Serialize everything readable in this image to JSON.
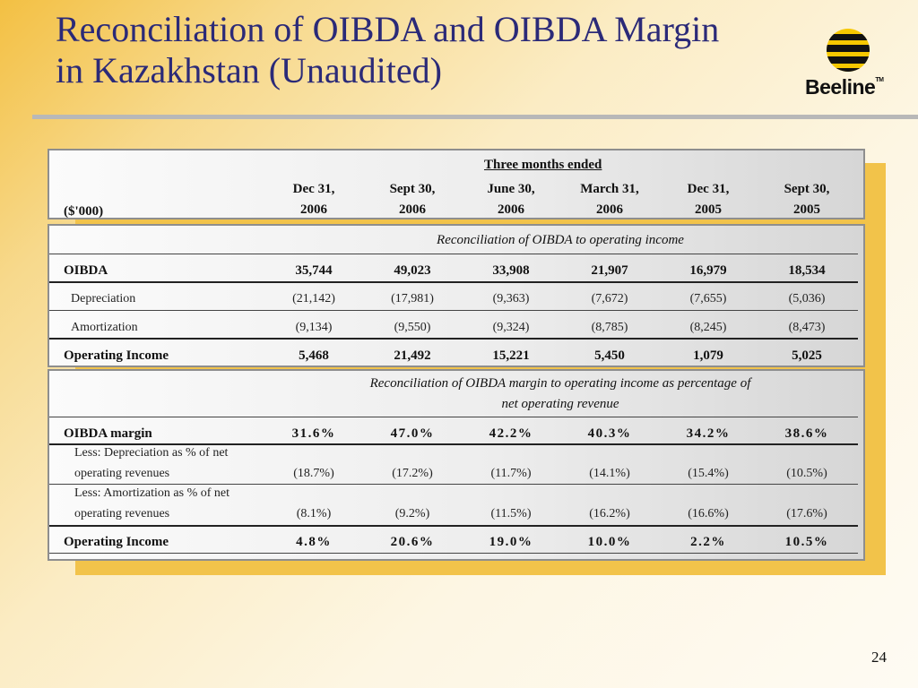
{
  "title": {
    "line1": "Reconciliation of OIBDA and OIBDA Margin",
    "line2": "in Kazakhstan (Unaudited)"
  },
  "logo": {
    "text": "Beeline",
    "tm": "TM",
    "icon": "beeline-striped-ball-icon",
    "stripe_color": "#f6c800",
    "dark_color": "#111111"
  },
  "page_number": "24",
  "table": {
    "group_header": "Three months ended",
    "unit_label": "($'000)",
    "columns": [
      {
        "line1": "Dec 31,",
        "line2": "2006"
      },
      {
        "line1": "Sept 30,",
        "line2": "2006"
      },
      {
        "line1": "June 30,",
        "line2": "2006"
      },
      {
        "line1": "March 31,",
        "line2": "2006"
      },
      {
        "line1": "Dec 31,",
        "line2": "2005"
      },
      {
        "line1": "Sept 30,",
        "line2": "2005"
      }
    ],
    "section1": {
      "caption": "Reconciliation of OIBDA to operating income",
      "rows": [
        {
          "label": "OIBDA",
          "values": [
            "35,744",
            "49,023",
            "33,908",
            "21,907",
            "16,979",
            "18,534"
          ]
        },
        {
          "label": "Depreciation",
          "values": [
            "(21,142)",
            "(17,981)",
            "(9,363)",
            "(7,672)",
            "(7,655)",
            "(5,036)"
          ]
        },
        {
          "label": "Amortization",
          "values": [
            "(9,134)",
            "(9,550)",
            "(9,324)",
            "(8,785)",
            "(8,245)",
            "(8,473)"
          ]
        },
        {
          "label": "Operating Income",
          "values": [
            "5,468",
            "21,492",
            "15,221",
            "5,450",
            "1,079",
            "5,025"
          ]
        }
      ]
    },
    "section2": {
      "caption_line1": "Reconciliation of OIBDA margin to operating income as percentage of",
      "caption_line2": "net operating revenue",
      "rows": [
        {
          "label": "OIBDA margin",
          "values": [
            "31.6%",
            "47.0%",
            "42.2%",
            "40.3%",
            "34.2%",
            "38.6%"
          ]
        },
        {
          "label_line1": "Less: Depreciation as % of net",
          "label_line2": "operating revenues",
          "values": [
            "(18.7%)",
            "(17.2%)",
            "(11.7%)",
            "(14.1%)",
            "(15.4%)",
            "(10.5%)"
          ]
        },
        {
          "label_line1": "Less: Amortization as % of net",
          "label_line2": "operating revenues",
          "values": [
            "(8.1%)",
            "(9.2%)",
            "(11.5%)",
            "(16.2%)",
            "(16.6%)",
            "(17.6%)"
          ]
        },
        {
          "label": "Operating Income",
          "values": [
            "4.8%",
            "20.6%",
            "19.0%",
            "10.0%",
            "2.2%",
            "10.5%"
          ]
        }
      ]
    }
  }
}
